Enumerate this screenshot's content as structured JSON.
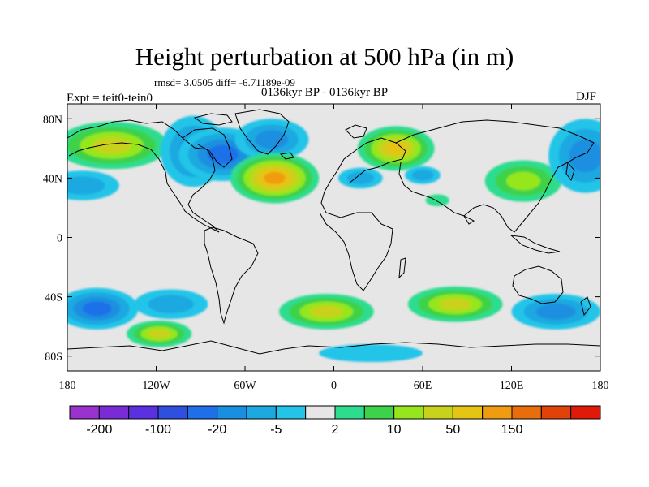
{
  "title": "Height perturbation at 500 hPa (in m)",
  "stats": "rmsd= 3.0505 diff= -6.71189e-09",
  "experiment": "Expt = teit0-tein0",
  "period": "0136kyr BP - 0136kyr BP",
  "season": "DJF",
  "map": {
    "projection": "cylindrical equidistant",
    "lon_range": [
      -180,
      180
    ],
    "lat_range": [
      -90,
      90
    ],
    "x_ticks": [
      {
        "value": -180,
        "label": "180"
      },
      {
        "value": -120,
        "label": "120W"
      },
      {
        "value": -60,
        "label": "60W"
      },
      {
        "value": 0,
        "label": "0"
      },
      {
        "value": 60,
        "label": "60E"
      },
      {
        "value": 120,
        "label": "120E"
      },
      {
        "value": 180,
        "label": "180"
      }
    ],
    "y_ticks": [
      {
        "value": 80,
        "label": "80N"
      },
      {
        "value": 40,
        "label": "40N"
      },
      {
        "value": 0,
        "label": "0"
      },
      {
        "value": -40,
        "label": "40S"
      },
      {
        "value": -80,
        "label": "80S"
      }
    ],
    "background_color": "#e6e6e6",
    "anomalies": [
      {
        "lon": -150,
        "lat": 62,
        "rlon": 38,
        "rlat": 16,
        "level": 4
      },
      {
        "lon": -95,
        "lat": 58,
        "rlon": 22,
        "rlat": 24,
        "level": -3
      },
      {
        "lon": -75,
        "lat": 56,
        "rlon": 30,
        "rlat": 18,
        "level": -4
      },
      {
        "lon": -42,
        "lat": 66,
        "rlon": 25,
        "rlat": 14,
        "level": -3
      },
      {
        "lon": -40,
        "lat": 40,
        "rlon": 30,
        "rlat": 17,
        "level": 6
      },
      {
        "lon": 42,
        "lat": 60,
        "rlon": 26,
        "rlat": 15,
        "level": 5
      },
      {
        "lon": 18,
        "lat": 40,
        "rlon": 15,
        "rlat": 7,
        "level": -2
      },
      {
        "lon": 60,
        "lat": 42,
        "rlon": 12,
        "rlat": 6,
        "level": -2
      },
      {
        "lon": 70,
        "lat": 25,
        "rlon": 8,
        "rlat": 4,
        "level": 1
      },
      {
        "lon": 128,
        "lat": 38,
        "rlon": 26,
        "rlat": 14,
        "level": 3
      },
      {
        "lon": 170,
        "lat": 55,
        "rlon": 25,
        "rlat": 25,
        "level": -3
      },
      {
        "lon": -170,
        "lat": 35,
        "rlon": 25,
        "rlat": 10,
        "level": -2
      },
      {
        "lon": -160,
        "lat": -48,
        "rlon": 28,
        "rlat": 14,
        "level": -4
      },
      {
        "lon": -110,
        "lat": -45,
        "rlon": 25,
        "rlat": 10,
        "level": -2
      },
      {
        "lon": -118,
        "lat": -65,
        "rlon": 22,
        "rlat": 9,
        "level": 4
      },
      {
        "lon": -5,
        "lat": -50,
        "rlon": 32,
        "rlat": 12,
        "level": 4
      },
      {
        "lon": 82,
        "lat": -45,
        "rlon": 32,
        "rlat": 12,
        "level": 4
      },
      {
        "lon": 150,
        "lat": -50,
        "rlon": 30,
        "rlat": 12,
        "level": -3
      },
      {
        "lon": 25,
        "lat": -78,
        "rlon": 35,
        "rlat": 6,
        "level": -1
      }
    ]
  },
  "colorbar": {
    "colors": [
      "#9a32cd",
      "#7b2bd6",
      "#5a30e0",
      "#2e4fe0",
      "#1f6fe8",
      "#1a8fe0",
      "#1ea8e0",
      "#24c4e8",
      "#e6e6e6",
      "#2edc8e",
      "#3cd24a",
      "#96e61e",
      "#c8d21a",
      "#e6c414",
      "#f09c10",
      "#e86e0c",
      "#e0420a",
      "#e01a08"
    ],
    "labels": [
      {
        "after_box": 1,
        "text": "-200"
      },
      {
        "after_box": 3,
        "text": "-100"
      },
      {
        "after_box": 5,
        "text": "-20"
      },
      {
        "after_box": 7,
        "text": "-5"
      },
      {
        "after_box": 9,
        "text": "2"
      },
      {
        "after_box": 11,
        "text": "10"
      },
      {
        "after_box": 13,
        "text": "50"
      },
      {
        "after_box": 15,
        "text": "150"
      }
    ]
  }
}
